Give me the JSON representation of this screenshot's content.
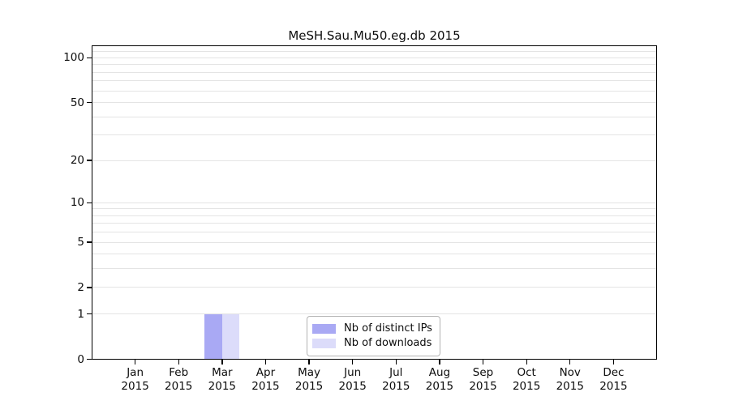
{
  "chart_data": {
    "type": "bar",
    "title": "MeSH.Sau.Mu50.eg.db 2015",
    "x_tick_months": [
      "Jan",
      "Feb",
      "Mar",
      "Apr",
      "May",
      "Jun",
      "Jul",
      "Aug",
      "Sep",
      "Oct",
      "Nov",
      "Dec"
    ],
    "x_tick_year": "2015",
    "series": [
      {
        "name": "Nb of distinct IPs",
        "color": "#a9a9f4",
        "values": [
          0,
          0,
          1,
          0,
          0,
          0,
          0,
          0,
          0,
          0,
          0,
          0
        ]
      },
      {
        "name": "Nb of downloads",
        "color": "#dcdcfa",
        "values": [
          0,
          0,
          1,
          0,
          0,
          0,
          0,
          0,
          0,
          0,
          0,
          0
        ]
      }
    ],
    "y_ticks": [
      0,
      1,
      2,
      5,
      10,
      20,
      50,
      100
    ],
    "y_minor_gridlines": [
      1,
      2,
      3,
      4,
      5,
      6,
      7,
      8,
      9,
      10,
      20,
      30,
      40,
      50,
      60,
      70,
      80,
      90,
      100,
      110
    ],
    "y_scale": "log10(value+1)",
    "ylim": [
      0,
      120
    ],
    "grid": "horizontal-only",
    "legend_position": "bottom-center-inside"
  }
}
